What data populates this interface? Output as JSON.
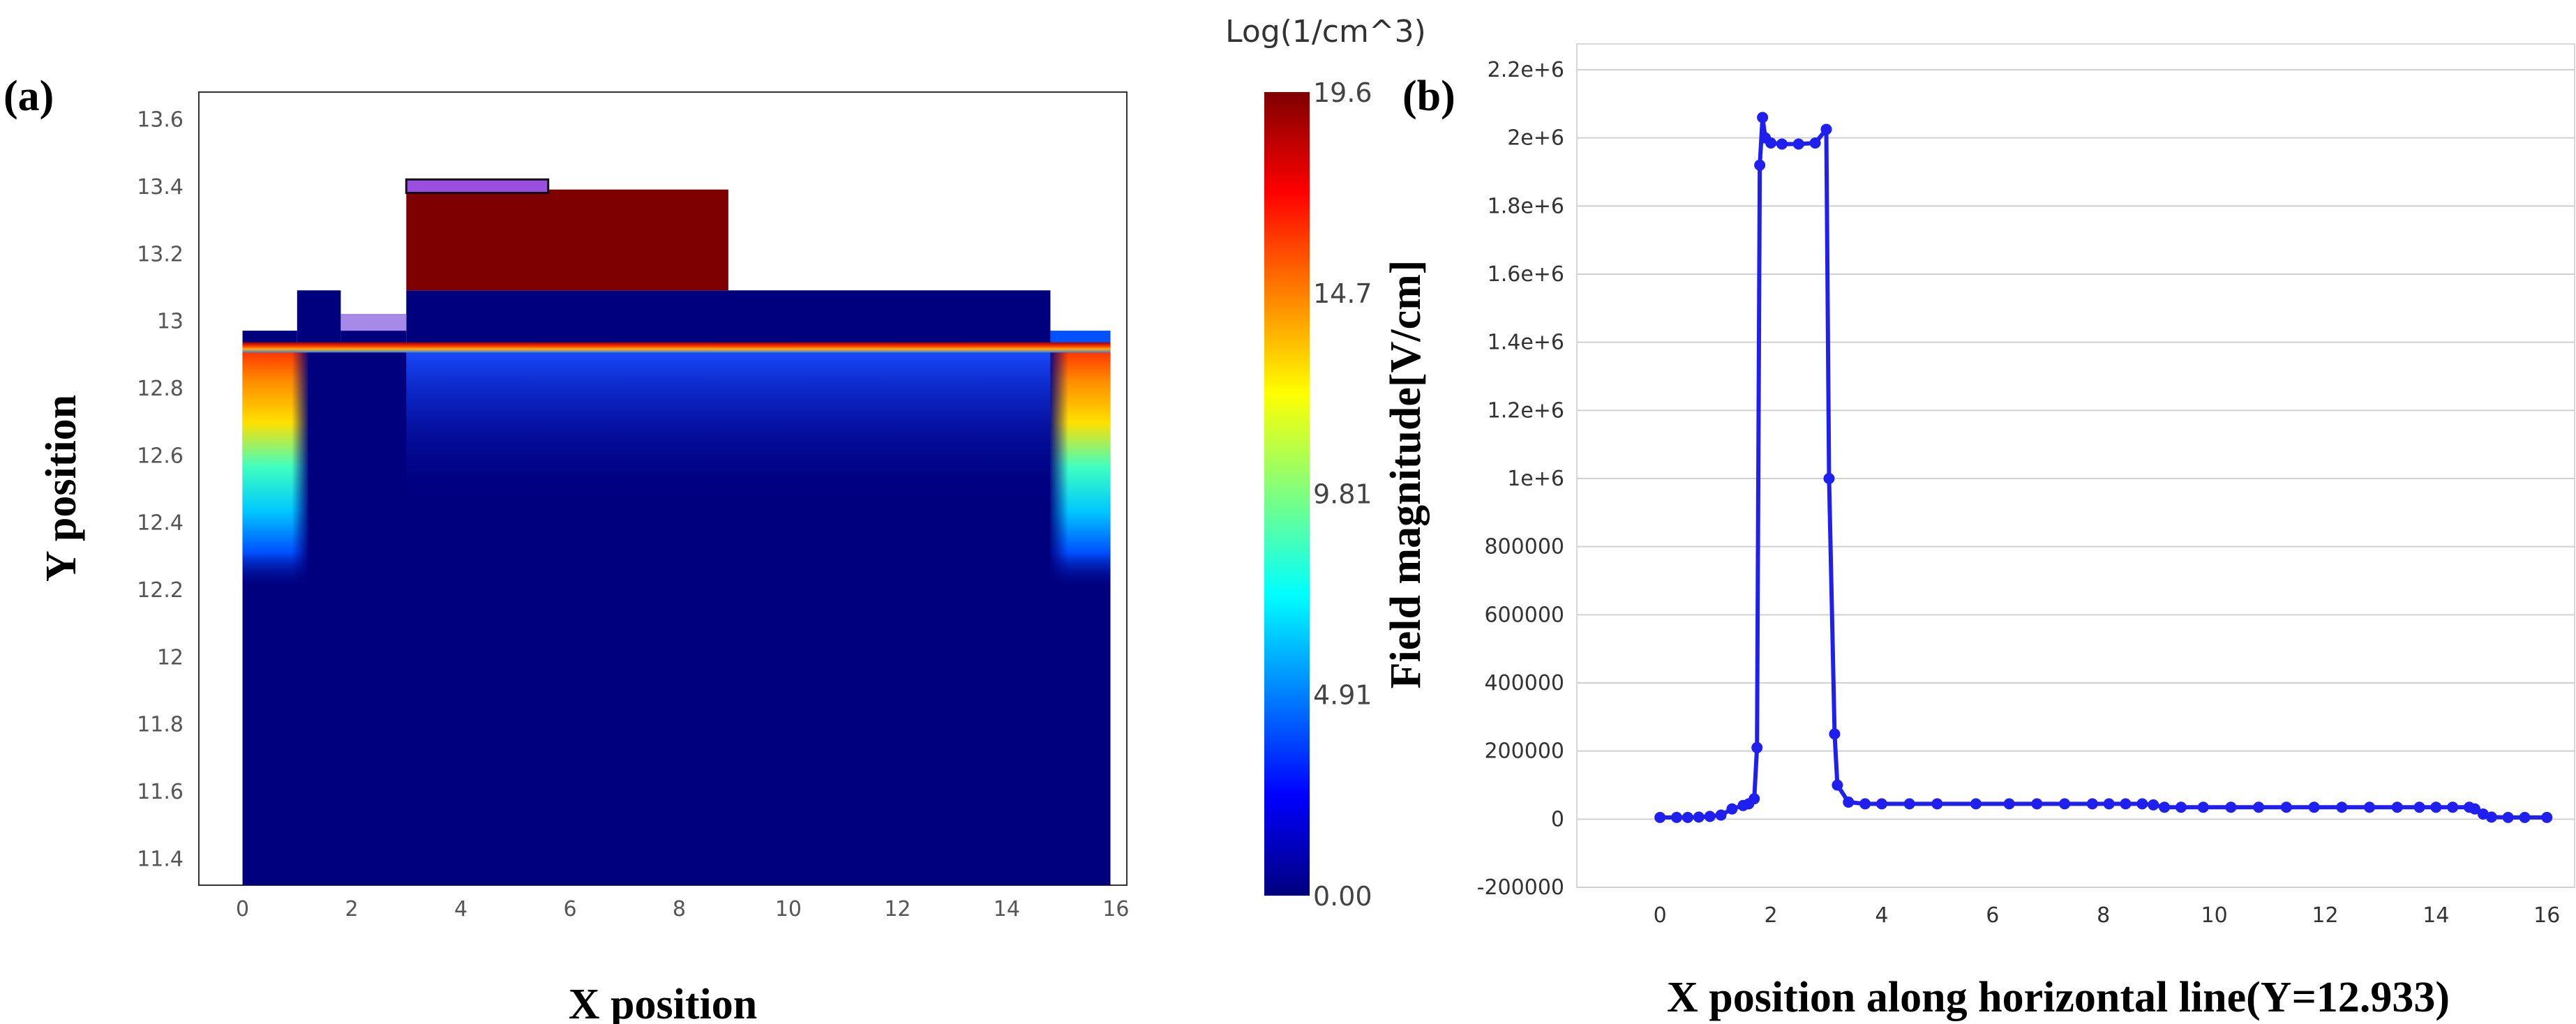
{
  "chart_data": [
    {
      "panel": "(a)",
      "type": "heatmap",
      "xlabel": "X position",
      "ylabel": "Y position",
      "xlim": [
        -0.8,
        16.2
      ],
      "ylim": [
        11.32,
        13.68
      ],
      "x_ticks": [
        0,
        2,
        4,
        6,
        8,
        10,
        12,
        14,
        16
      ],
      "y_ticks": [
        11.4,
        11.6,
        11.8,
        12,
        12.2,
        12.4,
        12.6,
        12.8,
        13,
        13.2,
        13.4,
        13.6
      ],
      "colorbar": {
        "title": "Log(1/cm^3)",
        "range": [
          0.0,
          19.6
        ],
        "tick_labels": [
          "19.6",
          "14.7",
          "9.81",
          "4.91",
          "0.00"
        ],
        "tick_values": [
          19.6,
          14.7,
          9.81,
          4.91,
          0.0
        ],
        "colormap": "jet"
      },
      "regions": [
        {
          "shape": "substrate",
          "x": [
            0,
            15.9
          ],
          "y": [
            11.32,
            12.93
          ],
          "value": 0.0
        },
        {
          "shape": "device_layer",
          "x": [
            0,
            1.0
          ],
          "y": [
            12.93,
            12.97
          ],
          "value": 0.0
        },
        {
          "shape": "device_layer",
          "x": [
            1.0,
            1.8
          ],
          "y": [
            12.93,
            13.09
          ],
          "value": 0.0
        },
        {
          "shape": "device_layer",
          "x": [
            1.8,
            3.0
          ],
          "y": [
            12.93,
            12.97
          ],
          "value": 0.0
        },
        {
          "shape": "device_layer",
          "x": [
            3.0,
            14.8
          ],
          "y": [
            12.93,
            13.09
          ],
          "value": 0.0
        },
        {
          "shape": "device_layer",
          "x": [
            14.8,
            15.9
          ],
          "y": [
            12.93,
            12.97
          ],
          "value": 4.0
        },
        {
          "shape": "gate_block",
          "x": [
            3.0,
            8.9
          ],
          "y": [
            13.09,
            13.39
          ],
          "value": 19.6
        },
        {
          "shape": "contact",
          "x": [
            3.0,
            5.6
          ],
          "y": [
            13.38,
            13.42
          ],
          "value": 11.0
        },
        {
          "shape": "contact",
          "x": [
            1.8,
            3.0
          ],
          "y": [
            12.97,
            13.02
          ],
          "value": 10.0
        }
      ],
      "features": {
        "channel_surface": {
          "x": [
            0,
            15.9
          ],
          "y": 12.92,
          "value_peak": 19.6
        },
        "left_well": {
          "x": [
            0,
            1.2
          ],
          "depth_to": 12.2
        },
        "right_well": {
          "x": [
            14.8,
            15.9
          ],
          "depth_to": 12.2
        },
        "channel_gradient": {
          "x": [
            3.0,
            14.8
          ],
          "depth_to": 12.45
        }
      }
    },
    {
      "panel": "(b)",
      "type": "line",
      "xlabel": "X position along horizontal line(Y=12.933)",
      "ylabel": "Field magnitude[V/cm]",
      "xlim": [
        -1.5,
        16.5
      ],
      "ylim": [
        -200000,
        2200000
      ],
      "x_ticks": [
        0,
        2,
        4,
        6,
        8,
        10,
        12,
        14,
        16
      ],
      "y_tick_labels": [
        "2.2e+6",
        "2e+6",
        "1.8e+6",
        "1.6e+6",
        "1.4e+6",
        "1.2e+6",
        "1e+6",
        "800000",
        "600000",
        "400000",
        "200000",
        "0",
        "-200000"
      ],
      "y_tick_values": [
        2200000,
        2000000,
        1800000,
        1600000,
        1400000,
        1200000,
        1000000,
        800000,
        600000,
        400000,
        200000,
        0,
        -200000
      ],
      "grid": "horizontal",
      "series": [
        {
          "color": "#1f1ff0",
          "x": [
            0,
            0.3,
            0.5,
            0.7,
            0.9,
            1.1,
            1.3,
            1.5,
            1.6,
            1.7,
            1.75,
            1.8,
            1.85,
            1.9,
            2.0,
            2.2,
            2.5,
            2.8,
            3.0,
            3.05,
            3.15,
            3.2,
            3.4,
            3.7,
            4.0,
            4.5,
            5.0,
            5.7,
            6.3,
            6.8,
            7.3,
            7.8,
            8.1,
            8.4,
            8.7,
            8.9,
            9.1,
            9.4,
            9.8,
            10.3,
            10.8,
            11.3,
            11.8,
            12.3,
            12.8,
            13.3,
            13.7,
            14.0,
            14.3,
            14.6,
            14.7,
            14.85,
            15.0,
            15.3,
            15.6,
            16.0
          ],
          "y": [
            5000,
            5000,
            5000,
            6000,
            8000,
            12000,
            30000,
            40000,
            45000,
            60000,
            210000,
            1920000,
            2060000,
            2000000,
            1985000,
            1982000,
            1982000,
            1985000,
            2025000,
            1000000,
            250000,
            100000,
            50000,
            45000,
            45000,
            45000,
            45000,
            45000,
            45000,
            45000,
            45000,
            45000,
            45000,
            45000,
            45000,
            42000,
            35000,
            35000,
            35000,
            35000,
            35000,
            35000,
            35000,
            35000,
            35000,
            35000,
            35000,
            35000,
            35000,
            35000,
            30000,
            15000,
            6000,
            5000,
            5000,
            5000
          ]
        }
      ]
    }
  ]
}
